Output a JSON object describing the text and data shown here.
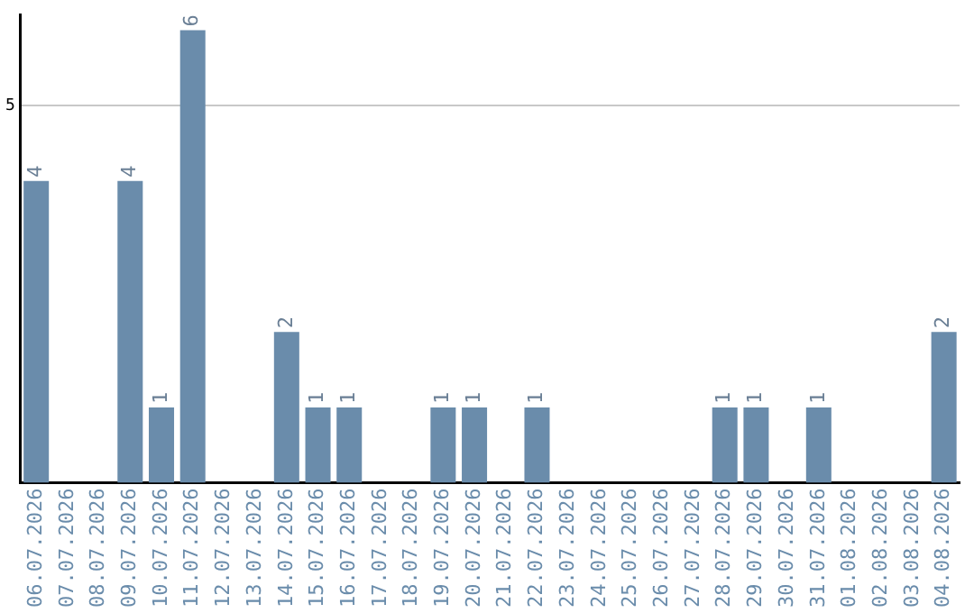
{
  "chart_data": {
    "type": "bar",
    "categories": [
      "06.07.2026",
      "07.07.2026",
      "08.07.2026",
      "09.07.2026",
      "10.07.2026",
      "11.07.2026",
      "12.07.2026",
      "13.07.2026",
      "14.07.2026",
      "15.07.2026",
      "16.07.2026",
      "17.07.2026",
      "18.07.2026",
      "19.07.2026",
      "20.07.2026",
      "21.07.2026",
      "22.07.2026",
      "23.07.2026",
      "24.07.2026",
      "25.07.2026",
      "26.07.2026",
      "27.07.2026",
      "28.07.2026",
      "29.07.2026",
      "30.07.2026",
      "31.07.2026",
      "01.08.2026",
      "02.08.2026",
      "03.08.2026",
      "04.08.2026"
    ],
    "values": [
      4,
      0,
      0,
      4,
      1,
      6,
      0,
      0,
      2,
      1,
      1,
      0,
      0,
      1,
      1,
      0,
      1,
      0,
      0,
      0,
      0,
      0,
      1,
      1,
      0,
      1,
      0,
      0,
      0,
      2
    ],
    "value_labels": [
      "4",
      null,
      null,
      "4",
      "1",
      "6",
      null,
      null,
      "2",
      "1",
      "1",
      null,
      null,
      "1",
      "1",
      null,
      "1",
      null,
      null,
      null,
      null,
      null,
      "1",
      "1",
      null,
      "1",
      null,
      null,
      null,
      "2"
    ],
    "color": "#6a8cab",
    "ylim": [
      0,
      6.2
    ],
    "yticks": [
      5
    ],
    "grid": "y",
    "legend": false
  }
}
